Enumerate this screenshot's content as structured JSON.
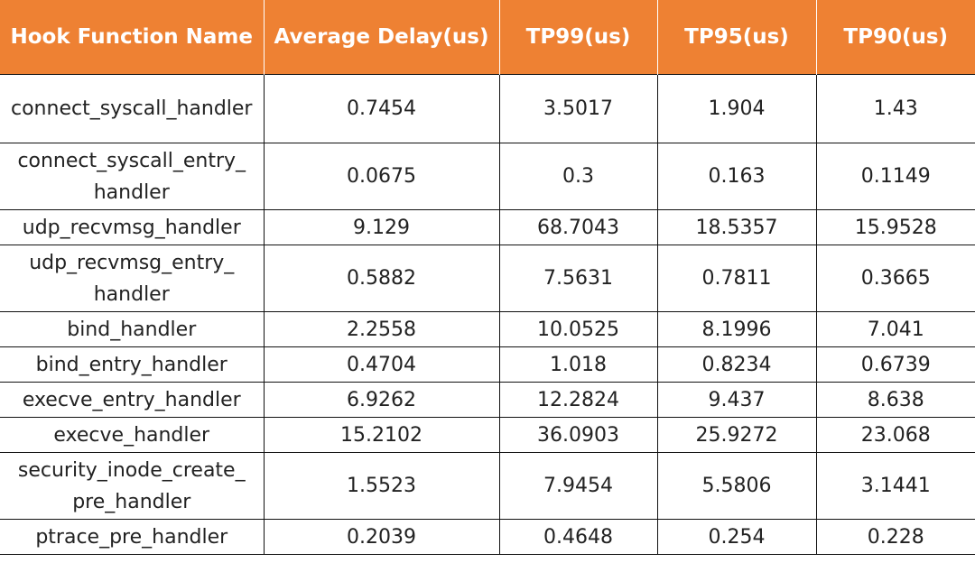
{
  "table": {
    "headers": [
      "Hook Function Name",
      "Average Delay(us)",
      "TP99(us)",
      "TP95(us)",
      "TP90(us)"
    ],
    "rows": [
      [
        "connect_syscall_handler",
        "0.7454",
        "3.5017",
        "1.904",
        "1.43"
      ],
      [
        "connect_syscall_entry_\nhandler",
        "0.0675",
        "0.3",
        "0.163",
        "0.1149"
      ],
      [
        "udp_recvmsg_handler",
        "9.129",
        "68.7043",
        "18.5357",
        "15.9528"
      ],
      [
        "udp_recvmsg_entry_\nhandler",
        "0.5882",
        "7.5631",
        "0.7811",
        "0.3665"
      ],
      [
        "bind_handler",
        "2.2558",
        "10.0525",
        "8.1996",
        "7.041"
      ],
      [
        "bind_entry_handler",
        "0.4704",
        "1.018",
        "0.8234",
        "0.6739"
      ],
      [
        "execve_entry_handler",
        "6.9262",
        "12.2824",
        "9.437",
        "8.638"
      ],
      [
        "execve_handler",
        "15.2102",
        "36.0903",
        "25.9272",
        "23.068"
      ],
      [
        "security_inode_create_\npre_handler",
        "1.5523",
        "7.9454",
        "5.5806",
        "3.1441"
      ],
      [
        "ptrace_pre_handler",
        "0.2039",
        "0.4648",
        "0.254",
        "0.228"
      ]
    ],
    "colors": {
      "header_bg": "#ee8133",
      "header_text": "#ffffff",
      "grid": "#111111"
    }
  }
}
